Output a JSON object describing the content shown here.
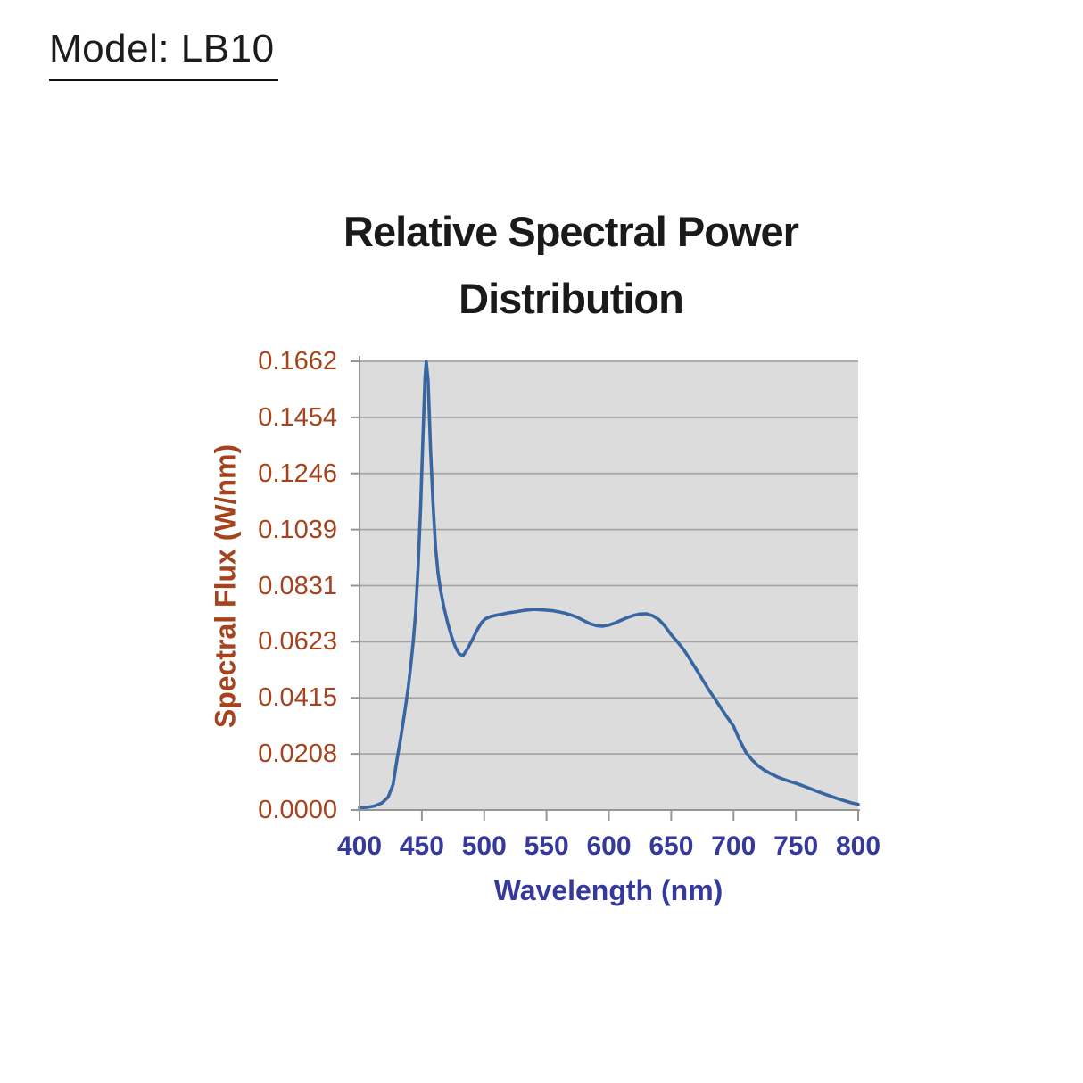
{
  "header": {
    "model_label": "Model: LB10"
  },
  "colors": {
    "title_text": "#1a1a1a",
    "y_axis_text": "#A6431C",
    "x_axis_text": "#35399B",
    "curve": "#3866A3",
    "plot_bg": "#DCDCDC",
    "gridline": "#A5A5A5",
    "axis_line": "#969696"
  },
  "chart_data": {
    "type": "line",
    "title": "Relative Spectral Power Distribution",
    "title_lines": [
      "Relative Spectral Power",
      "Distribution"
    ],
    "xlabel": "Wavelength (nm)",
    "ylabel": "Spectral Flux (W/nm)",
    "xlim": [
      400,
      800
    ],
    "ylim": [
      0,
      0.1662
    ],
    "x_tick_labels": [
      "400",
      "450",
      "500",
      "550",
      "600",
      "650",
      "700",
      "750",
      "800"
    ],
    "y_tick_labels": [
      "0.1662",
      "0.1454",
      "0.1246",
      "0.1039",
      "0.0831",
      "0.0623",
      "0.0415",
      "0.0208",
      "0.0000"
    ],
    "grid": "horizontal",
    "legend_position": "none",
    "series": [
      {
        "name": "Spectral Flux (W/nm)",
        "points": [
          [
            400,
            0.0008
          ],
          [
            406,
            0.001
          ],
          [
            412,
            0.0015
          ],
          [
            418,
            0.0026
          ],
          [
            423,
            0.0048
          ],
          [
            427,
            0.0095
          ],
          [
            430,
            0.0185
          ],
          [
            433,
            0.0265
          ],
          [
            436,
            0.0355
          ],
          [
            439,
            0.045
          ],
          [
            441,
            0.053
          ],
          [
            443,
            0.062
          ],
          [
            445,
            0.073
          ],
          [
            447,
            0.09
          ],
          [
            449,
            0.112
          ],
          [
            451,
            0.14
          ],
          [
            452.5,
            0.16
          ],
          [
            453.5,
            0.1662
          ],
          [
            455,
            0.159
          ],
          [
            457,
            0.133
          ],
          [
            459,
            0.113
          ],
          [
            461,
            0.0975
          ],
          [
            463,
            0.0878
          ],
          [
            465,
            0.0815
          ],
          [
            468,
            0.0745
          ],
          [
            471,
            0.0688
          ],
          [
            474,
            0.064
          ],
          [
            477,
            0.0603
          ],
          [
            480,
            0.0578
          ],
          [
            483,
            0.0572
          ],
          [
            486,
            0.0592
          ],
          [
            489,
            0.0618
          ],
          [
            492,
            0.0645
          ],
          [
            495,
            0.0672
          ],
          [
            498,
            0.0695
          ],
          [
            501,
            0.0708
          ],
          [
            505,
            0.0716
          ],
          [
            510,
            0.0722
          ],
          [
            515,
            0.0726
          ],
          [
            520,
            0.0731
          ],
          [
            525,
            0.0734
          ],
          [
            530,
            0.0738
          ],
          [
            535,
            0.0741
          ],
          [
            540,
            0.0743
          ],
          [
            545,
            0.0742
          ],
          [
            550,
            0.074
          ],
          [
            555,
            0.0738
          ],
          [
            560,
            0.0734
          ],
          [
            565,
            0.0729
          ],
          [
            570,
            0.0722
          ],
          [
            575,
            0.0713
          ],
          [
            580,
            0.0701
          ],
          [
            585,
            0.069
          ],
          [
            590,
            0.0683
          ],
          [
            595,
            0.0681
          ],
          [
            600,
            0.0685
          ],
          [
            605,
            0.0693
          ],
          [
            610,
            0.0703
          ],
          [
            615,
            0.0713
          ],
          [
            620,
            0.0721
          ],
          [
            625,
            0.0726
          ],
          [
            630,
            0.0727
          ],
          [
            635,
            0.072
          ],
          [
            640,
            0.0706
          ],
          [
            645,
            0.0681
          ],
          [
            650,
            0.0649
          ],
          [
            655,
            0.0623
          ],
          [
            660,
            0.0594
          ],
          [
            665,
            0.0559
          ],
          [
            670,
            0.0522
          ],
          [
            675,
            0.0484
          ],
          [
            680,
            0.0446
          ],
          [
            685,
            0.0412
          ],
          [
            690,
            0.0377
          ],
          [
            695,
            0.0343
          ],
          [
            700,
            0.031
          ],
          [
            705,
            0.0258
          ],
          [
            710,
            0.0213
          ],
          [
            715,
            0.0185
          ],
          [
            720,
            0.0163
          ],
          [
            725,
            0.0147
          ],
          [
            730,
            0.0134
          ],
          [
            735,
            0.0123
          ],
          [
            740,
            0.0114
          ],
          [
            745,
            0.0106
          ],
          [
            750,
            0.0099
          ],
          [
            755,
            0.0091
          ],
          [
            760,
            0.0082
          ],
          [
            765,
            0.0073
          ],
          [
            770,
            0.0064
          ],
          [
            775,
            0.0056
          ],
          [
            780,
            0.0048
          ],
          [
            785,
            0.004
          ],
          [
            790,
            0.0033
          ],
          [
            795,
            0.0026
          ],
          [
            800,
            0.0021
          ]
        ]
      }
    ]
  }
}
